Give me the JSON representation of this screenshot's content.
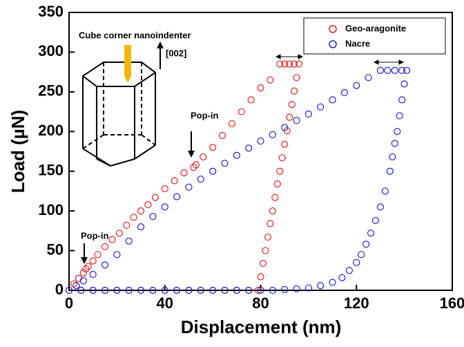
{
  "chart_data": {
    "type": "scatter",
    "x_label": "Displacement (nm)",
    "y_label": "Load (µN)",
    "xlim": [
      0,
      160
    ],
    "xticks": [
      0,
      40,
      80,
      120,
      160
    ],
    "ylim": [
      0,
      350
    ],
    "yticks": [
      0,
      50,
      100,
      150,
      200,
      250,
      300,
      350
    ],
    "legend": "top-right",
    "annotations": [
      "Pop-in",
      "Pop-in",
      "Cube corner nanoindenter",
      "[002]"
    ],
    "series": [
      {
        "name": "Geo-aragonite",
        "color": "#e02020",
        "x": [
          0,
          2,
          4,
          6,
          7,
          8,
          10,
          12,
          15,
          18,
          21,
          24,
          27,
          30,
          33,
          36,
          40,
          44,
          48,
          52,
          53,
          56,
          60,
          64,
          68,
          72,
          76,
          80,
          84,
          88,
          90,
          92,
          94,
          96,
          95,
          94,
          93,
          92,
          91,
          90,
          89,
          88,
          87,
          86,
          85,
          84,
          83,
          82,
          81,
          80,
          79,
          5,
          10,
          15,
          20,
          25,
          30,
          35,
          40,
          45,
          50,
          55,
          60,
          65,
          70,
          75
        ],
        "values": [
          0,
          8,
          15,
          22,
          27,
          30,
          37,
          45,
          55,
          64,
          72,
          82,
          92,
          100,
          108,
          117,
          128,
          138,
          148,
          155,
          158,
          168,
          180,
          195,
          210,
          225,
          240,
          255,
          265,
          285,
          285,
          285,
          285,
          285,
          268,
          251,
          234,
          218,
          201,
          184,
          167,
          150,
          134,
          117,
          100,
          84,
          67,
          50,
          34,
          17,
          0,
          0,
          0,
          0,
          0,
          0,
          0,
          0,
          0,
          0,
          0,
          0,
          0,
          0,
          0,
          0
        ]
      },
      {
        "name": "Nacre",
        "color": "#2020d0",
        "x": [
          0,
          3,
          6,
          10,
          15,
          20,
          25,
          30,
          35,
          40,
          45,
          50,
          55,
          60,
          65,
          70,
          75,
          80,
          85,
          90,
          95,
          100,
          105,
          110,
          115,
          120,
          125,
          130,
          133,
          136,
          139,
          141,
          140,
          139,
          138,
          137,
          136,
          135,
          134,
          132,
          130,
          128,
          126,
          124,
          122,
          120,
          117,
          114,
          110,
          105,
          100,
          95,
          90,
          85,
          80,
          5,
          10,
          15,
          20,
          25,
          30,
          35,
          40,
          45,
          50,
          55,
          60,
          65,
          70,
          75
        ],
        "values": [
          0,
          6,
          12,
          20,
          32,
          45,
          62,
          80,
          93,
          105,
          118,
          130,
          140,
          150,
          160,
          170,
          179,
          188,
          196,
          205,
          214,
          222,
          231,
          240,
          249,
          258,
          268,
          277,
          277,
          277,
          277,
          277,
          260,
          240,
          220,
          200,
          185,
          168,
          150,
          125,
          105,
          88,
          72,
          58,
          45,
          35,
          25,
          16,
          10,
          6,
          3,
          2,
          1,
          0,
          0,
          0,
          0,
          0,
          0,
          0,
          0,
          0,
          0,
          0,
          0,
          0,
          0,
          0,
          0,
          0
        ]
      }
    ]
  }
}
